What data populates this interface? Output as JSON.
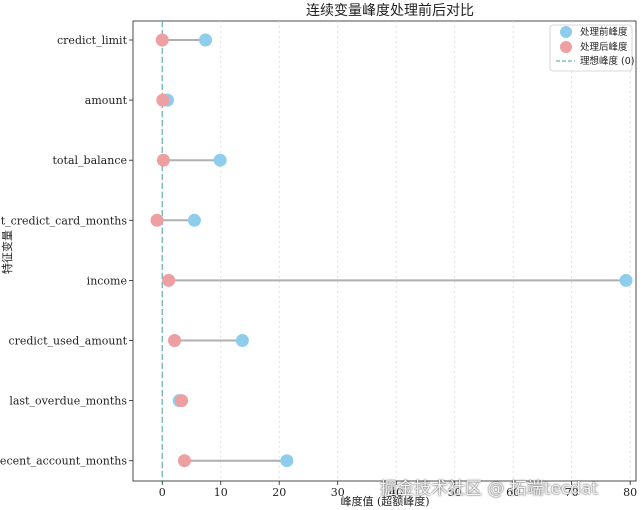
{
  "chart_data": {
    "type": "dumbbell",
    "title": "连续变量峰度处理前后对比",
    "xlabel": "峰度值 (超额峰度)",
    "ylabel": "特征变量",
    "xlim": [
      -5,
      81
    ],
    "xticks": [
      0,
      10,
      20,
      30,
      40,
      50,
      60,
      70,
      80
    ],
    "grid": "x dotted",
    "legend_position": "top-right",
    "categories": [
      "credict_limit",
      "amount",
      "total_balance",
      "last_credict_card_months",
      "income",
      "credict_used_amount",
      "last_overdue_months",
      "recent_account_months"
    ],
    "series": [
      {
        "name": "处理前峰度",
        "color": "#8ecdec",
        "values": [
          7.4,
          0.9,
          9.9,
          5.5,
          79.3,
          13.7,
          2.9,
          21.3
        ]
      },
      {
        "name": "处理后峰度",
        "color": "#ee9fa2",
        "values": [
          0.0,
          0.1,
          0.2,
          -0.9,
          1.1,
          2.1,
          3.3,
          3.8
        ]
      }
    ],
    "reference_line": {
      "label": "理想峰度 (0)",
      "x": 0,
      "color": "#6fb3b3",
      "style": "dashed"
    }
  },
  "watermark": "掘金技术社区 @ 拓端tecdat"
}
